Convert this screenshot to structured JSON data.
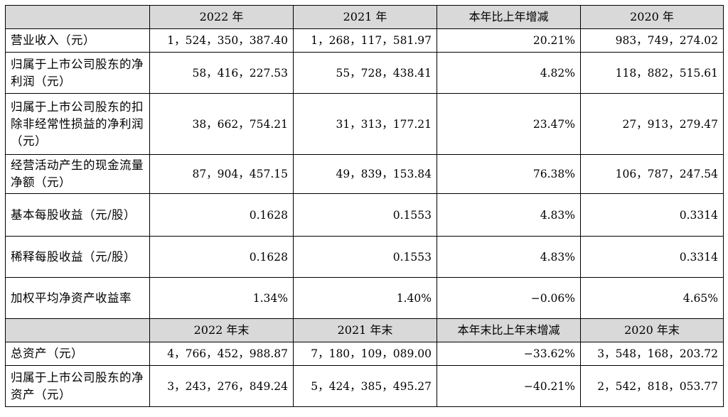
{
  "header_annual": {
    "col1": "2022 年",
    "col2": "2021 年",
    "col3": "本年比上年增减",
    "col4": "2020 年"
  },
  "rows_annual": [
    {
      "label": "营业收入（元）",
      "v2022": "1，524，350，387.40",
      "v2021": "1，268，117，581.97",
      "change": "20.21%",
      "v2020": "983，749，274.02"
    },
    {
      "label": "归属于上市公司股东的净利润（元）",
      "v2022": "58，416，227.53",
      "v2021": "55，728，438.41",
      "change": "4.82%",
      "v2020": "118，882，515.61"
    },
    {
      "label": "归属于上市公司股东的扣除非经常性损益的净利润（元）",
      "v2022": "38，662，754.21",
      "v2021": "31，313，177.21",
      "change": "23.47%",
      "v2020": "27，913，279.47"
    },
    {
      "label": "经营活动产生的现金流量净额（元）",
      "v2022": "87，904，457.15",
      "v2021": "49，839，153.84",
      "change": "76.38%",
      "v2020": "106，787，247.54"
    },
    {
      "label": "基本每股收益（元/股）",
      "v2022": "0.1628",
      "v2021": "0.1553",
      "change": "4.83%",
      "v2020": "0.3314"
    },
    {
      "label": "稀释每股收益（元/股）",
      "v2022": "0.1628",
      "v2021": "0.1553",
      "change": "4.83%",
      "v2020": "0.3314"
    },
    {
      "label": "加权平均净资产收益率",
      "v2022": "1.34%",
      "v2021": "1.40%",
      "change": "−0.06%",
      "v2020": "4.65%"
    }
  ],
  "header_yearend": {
    "col1": "2022 年末",
    "col2": "2021 年末",
    "col3": "本年末比上年末增减",
    "col4": "2020 年末"
  },
  "rows_yearend": [
    {
      "label": "总资产（元）",
      "v2022": "4，766，452，988.87",
      "v2021": "7，180，109，089.00",
      "change": "−33.62%",
      "v2020": "3，548，168，203.72"
    },
    {
      "label": "归属于上市公司股东的净资产（元）",
      "v2022": "3，243，276，849.24",
      "v2021": "5，424，385，495.27",
      "change": "−40.21%",
      "v2020": "2，542，818，053.77"
    }
  ]
}
